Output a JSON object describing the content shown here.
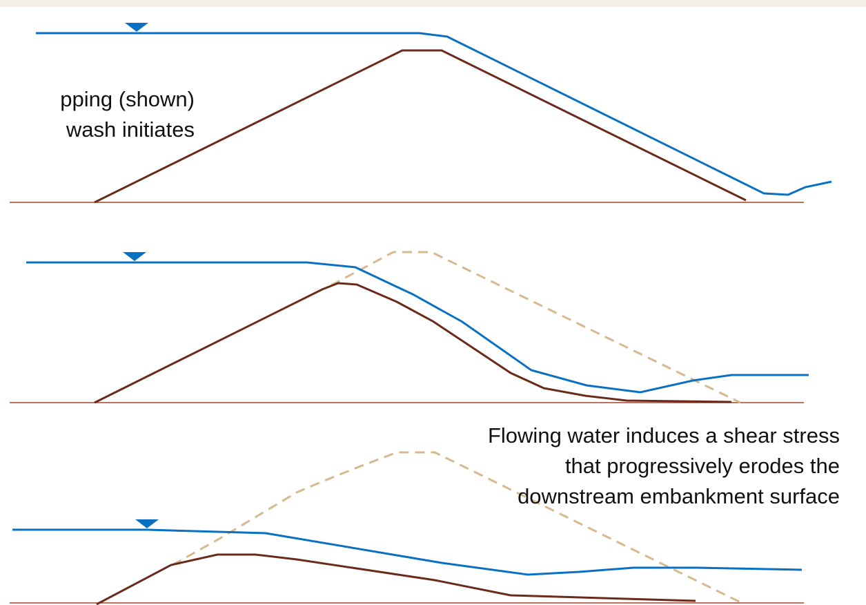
{
  "captions": {
    "stage1": {
      "line1": "pping (shown)",
      "line2": "wash initiates"
    },
    "stage3": {
      "line1": "Flowing water induces a shear stress",
      "line2": "that progressively erodes the",
      "line3": "downstream embankment surface"
    }
  },
  "colors": {
    "water": "#0a70c2",
    "embankment": "#6b2b1a",
    "original_profile": "#d8b98e",
    "ground": "#a5402a",
    "background_band": "#f3eee6"
  },
  "legend_semantics": {
    "water_level_marker": "triangle-down-icon"
  }
}
